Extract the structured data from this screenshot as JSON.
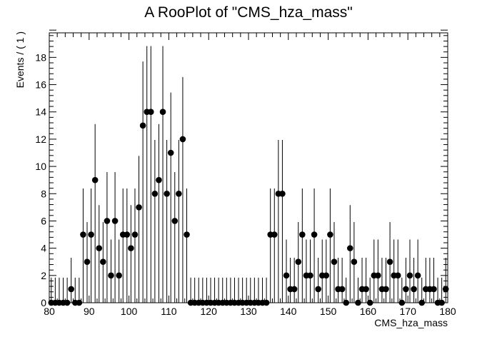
{
  "chart_data": {
    "type": "scatter",
    "title": "A RooPlot of \"CMS_hza_mass\"",
    "xlabel": "CMS_hza_mass",
    "ylabel": "Events / ( 1 )",
    "xlim": [
      80,
      180
    ],
    "ylim": [
      0,
      19.8
    ],
    "x_ticks": [
      80,
      90,
      100,
      110,
      120,
      130,
      140,
      150,
      160,
      170,
      180
    ],
    "y_ticks": [
      0,
      2,
      4,
      6,
      8,
      10,
      12,
      14,
      16,
      18
    ],
    "grid": false,
    "legend": "none",
    "marker_color": "#000000",
    "error_bars": "poisson",
    "series": [
      {
        "x": [
          80.5,
          81.5,
          82.5,
          83.5,
          84.5,
          85.5,
          86.5,
          87.5,
          88.5,
          89.5,
          90.5,
          91.5,
          92.5,
          93.5,
          94.5,
          95.5,
          96.5,
          97.5,
          98.5,
          99.5,
          100.5,
          101.5,
          102.5,
          103.5,
          104.5,
          105.5,
          106.5,
          107.5,
          108.5,
          109.5,
          110.5,
          111.5,
          112.5,
          113.5,
          114.5,
          115.5,
          116.5,
          117.5,
          118.5,
          119.5,
          120.5,
          121.5,
          122.5,
          123.5,
          124.5,
          125.5,
          126.5,
          127.5,
          128.5,
          129.5,
          130.5,
          131.5,
          132.5,
          133.5,
          134.5,
          135.5,
          136.5,
          137.5,
          138.5,
          139.5,
          140.5,
          141.5,
          142.5,
          143.5,
          144.5,
          145.5,
          146.5,
          147.5,
          148.5,
          149.5,
          150.5,
          151.5,
          152.5,
          153.5,
          154.5,
          155.5,
          156.5,
          157.5,
          158.5,
          159.5,
          160.5,
          161.5,
          162.5,
          163.5,
          164.5,
          165.5,
          166.5,
          167.5,
          168.5,
          169.5,
          170.5,
          171.5,
          172.5,
          173.5,
          174.5,
          175.5,
          176.5,
          177.5,
          178.5,
          179.5
        ],
        "y": [
          0,
          0,
          0,
          0,
          0,
          1,
          0,
          0,
          5,
          3,
          5,
          9,
          4,
          3,
          6,
          2,
          6,
          2,
          5,
          5,
          4,
          5,
          7,
          13,
          14,
          14,
          8,
          9,
          14,
          8,
          11,
          6,
          8,
          12,
          5,
          0,
          0,
          0,
          0,
          0,
          0,
          0,
          0,
          0,
          0,
          0,
          0,
          0,
          0,
          0,
          0,
          0,
          0,
          0,
          0,
          5,
          5,
          8,
          8,
          2,
          1,
          1,
          3,
          5,
          2,
          2,
          5,
          1,
          2,
          2,
          5,
          3,
          1,
          1,
          0,
          4,
          3,
          0,
          1,
          1,
          0,
          2,
          2,
          1,
          1,
          3,
          2,
          2,
          0,
          1,
          2,
          1,
          2,
          0,
          1,
          1,
          1,
          0,
          0,
          1
        ]
      }
    ]
  }
}
